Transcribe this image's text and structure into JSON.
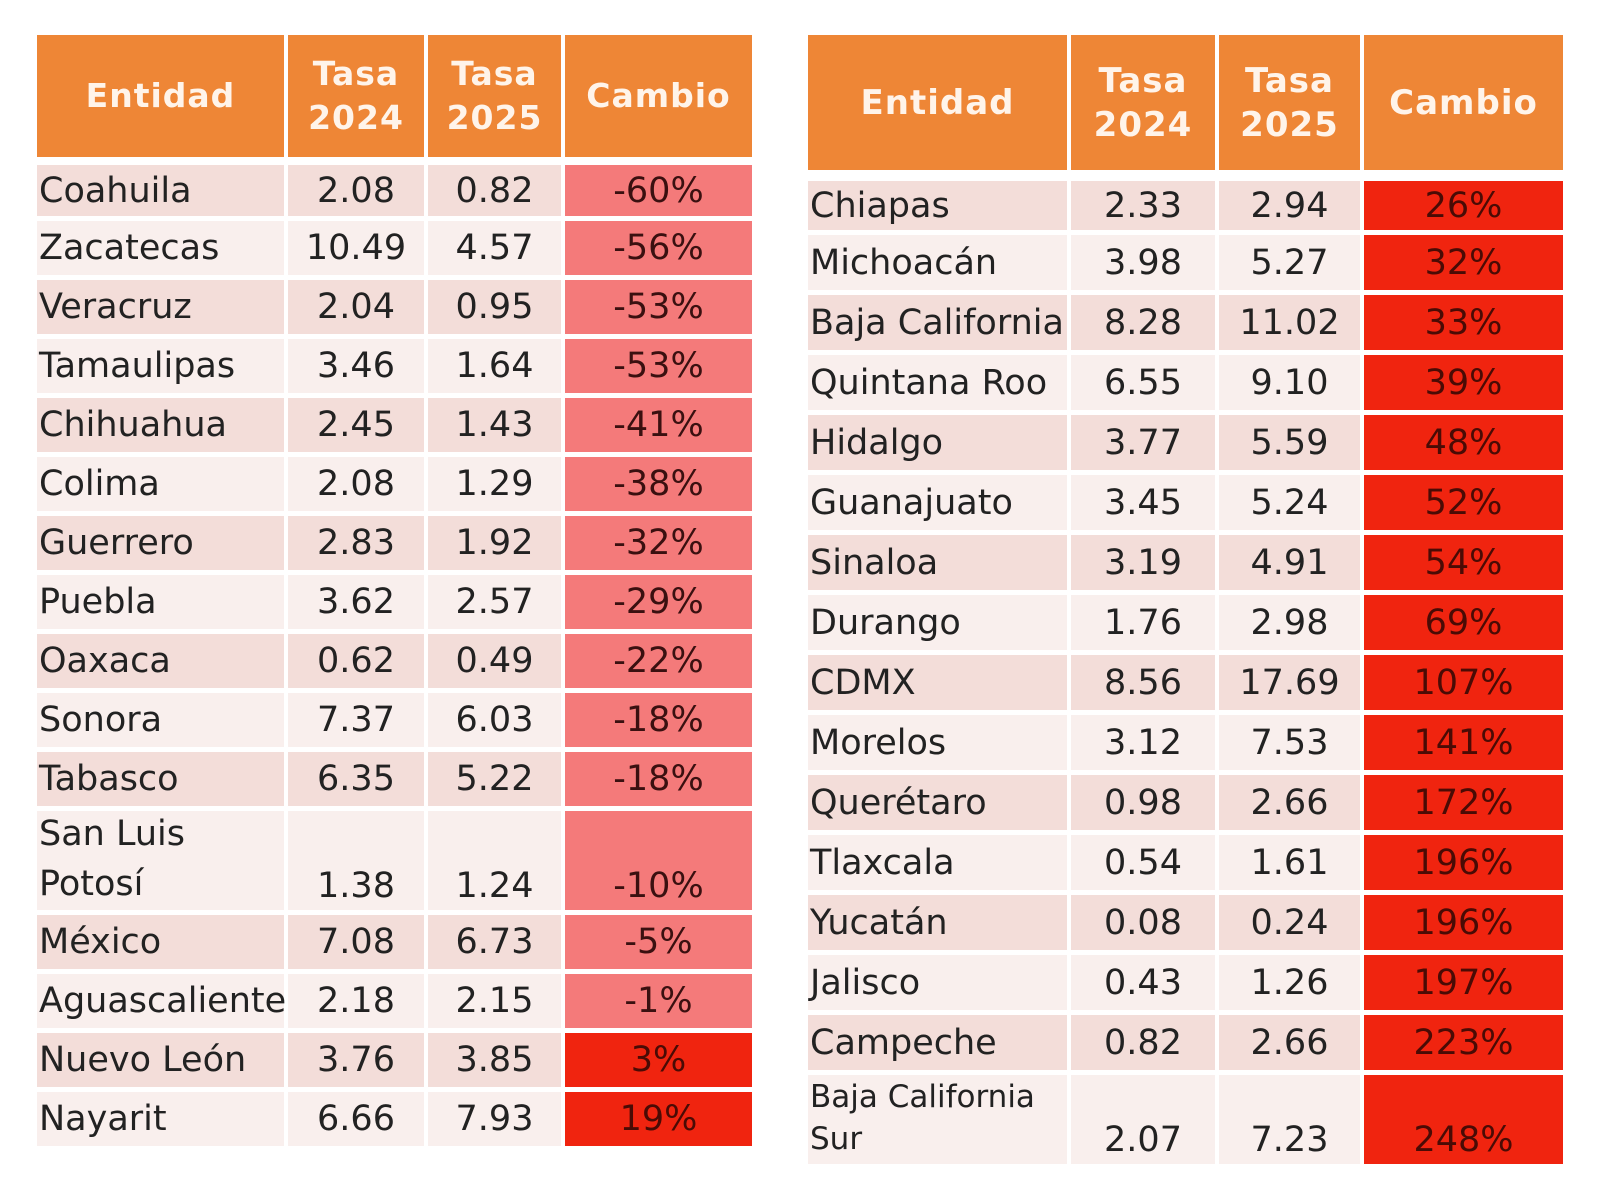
{
  "chart_data": {
    "type": "table",
    "title": "",
    "columns": [
      "Entidad",
      "Tasa\n2024",
      "Tasa\n2025",
      "Cambio"
    ],
    "tables": [
      {
        "name": "decreases",
        "rows": [
          {
            "entidad": "Coahuila",
            "tasa2024": "2.08",
            "tasa2025": "0.82",
            "cambio": "-60%"
          },
          {
            "entidad": "Zacatecas",
            "tasa2024": "10.49",
            "tasa2025": "4.57",
            "cambio": "-56%"
          },
          {
            "entidad": "Veracruz",
            "tasa2024": "2.04",
            "tasa2025": "0.95",
            "cambio": "-53%"
          },
          {
            "entidad": "Tamaulipas",
            "tasa2024": "3.46",
            "tasa2025": "1.64",
            "cambio": "-53%"
          },
          {
            "entidad": "Chihuahua",
            "tasa2024": "2.45",
            "tasa2025": "1.43",
            "cambio": "-41%"
          },
          {
            "entidad": "Colima",
            "tasa2024": "2.08",
            "tasa2025": "1.29",
            "cambio": "-38%"
          },
          {
            "entidad": "Guerrero",
            "tasa2024": "2.83",
            "tasa2025": "1.92",
            "cambio": "-32%"
          },
          {
            "entidad": "Puebla",
            "tasa2024": "3.62",
            "tasa2025": "2.57",
            "cambio": "-29%"
          },
          {
            "entidad": "Oaxaca",
            "tasa2024": "0.62",
            "tasa2025": "0.49",
            "cambio": "-22%"
          },
          {
            "entidad": "Sonora",
            "tasa2024": "7.37",
            "tasa2025": "6.03",
            "cambio": "-18%"
          },
          {
            "entidad": "Tabasco",
            "tasa2024": "6.35",
            "tasa2025": "5.22",
            "cambio": "-18%"
          },
          {
            "entidad": "San Luis\nPotosí",
            "tasa2024": "1.38",
            "tasa2025": "1.24",
            "cambio": "-10%"
          },
          {
            "entidad": "México",
            "tasa2024": "7.08",
            "tasa2025": "6.73",
            "cambio": "-5%"
          },
          {
            "entidad": "Aguascalientes",
            "tasa2024": "2.18",
            "tasa2025": "2.15",
            "cambio": "-1%"
          },
          {
            "entidad": "Nuevo León",
            "tasa2024": "3.76",
            "tasa2025": "3.85",
            "cambio": "3%"
          },
          {
            "entidad": "Nayarit",
            "tasa2024": "6.66",
            "tasa2025": "7.93",
            "cambio": "19%"
          }
        ]
      },
      {
        "name": "increases",
        "rows": [
          {
            "entidad": "Chiapas",
            "tasa2024": "2.33",
            "tasa2025": "2.94",
            "cambio": "26%"
          },
          {
            "entidad": "Michoacán",
            "tasa2024": "3.98",
            "tasa2025": "5.27",
            "cambio": "32%"
          },
          {
            "entidad": "Baja California",
            "tasa2024": "8.28",
            "tasa2025": "11.02",
            "cambio": "33%"
          },
          {
            "entidad": "Quintana Roo",
            "tasa2024": "6.55",
            "tasa2025": "9.10",
            "cambio": "39%"
          },
          {
            "entidad": "Hidalgo",
            "tasa2024": "3.77",
            "tasa2025": "5.59",
            "cambio": "48%"
          },
          {
            "entidad": "Guanajuato",
            "tasa2024": "3.45",
            "tasa2025": "5.24",
            "cambio": "52%"
          },
          {
            "entidad": "Sinaloa",
            "tasa2024": "3.19",
            "tasa2025": "4.91",
            "cambio": "54%"
          },
          {
            "entidad": "Durango",
            "tasa2024": "1.76",
            "tasa2025": "2.98",
            "cambio": "69%"
          },
          {
            "entidad": "CDMX",
            "tasa2024": "8.56",
            "tasa2025": "17.69",
            "cambio": "107%"
          },
          {
            "entidad": "Morelos",
            "tasa2024": "3.12",
            "tasa2025": "7.53",
            "cambio": "141%"
          },
          {
            "entidad": "Querétaro",
            "tasa2024": "0.98",
            "tasa2025": "2.66",
            "cambio": "172%"
          },
          {
            "entidad": "Tlaxcala",
            "tasa2024": "0.54",
            "tasa2025": "1.61",
            "cambio": "196%"
          },
          {
            "entidad": "Yucatán",
            "tasa2024": "0.08",
            "tasa2025": "0.24",
            "cambio": "196%"
          },
          {
            "entidad": "Jalisco",
            "tasa2024": "0.43",
            "tasa2025": "1.26",
            "cambio": "197%"
          },
          {
            "entidad": "Campeche",
            "tasa2024": "0.82",
            "tasa2025": "2.66",
            "cambio": "223%"
          },
          {
            "entidad": "Baja California\nSur",
            "tasa2024": "2.07",
            "tasa2025": "7.23",
            "cambio": "248%"
          }
        ]
      }
    ],
    "colors": {
      "header": "#ee8636",
      "negative": "#f47a7a",
      "positive": "#f0240f"
    }
  }
}
